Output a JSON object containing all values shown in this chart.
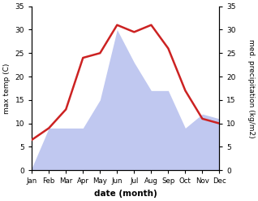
{
  "months": [
    "Jan",
    "Feb",
    "Mar",
    "Apr",
    "May",
    "Jun",
    "Jul",
    "Aug",
    "Sep",
    "Oct",
    "Nov",
    "Dec"
  ],
  "temperature": [
    6.5,
    9.0,
    13.0,
    24.0,
    25.0,
    31.0,
    29.5,
    31.0,
    26.0,
    17.0,
    11.0,
    10.0
  ],
  "precipitation": [
    0.5,
    9.0,
    9.0,
    9.0,
    15.0,
    30.0,
    23.0,
    17.0,
    17.0,
    9.0,
    12.0,
    11.0
  ],
  "temp_color": "#cc2222",
  "precip_color": "#c0c8f0",
  "ylim_left": [
    0,
    35
  ],
  "ylim_right": [
    0,
    35
  ],
  "yticks": [
    0,
    5,
    10,
    15,
    20,
    25,
    30,
    35
  ],
  "ylabel_left": "max temp (C)",
  "ylabel_right": "med. precipitation (kg/m2)",
  "xlabel": "date (month)",
  "bg_color": "#ffffff",
  "plot_bg_color": "#ffffff"
}
